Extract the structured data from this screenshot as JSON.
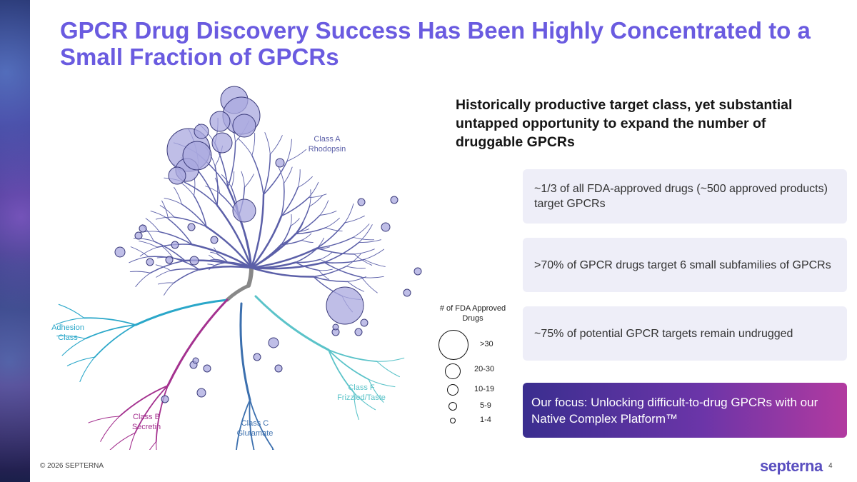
{
  "slide": {
    "title": "GPCR Drug Discovery Success Has Been Highly Concentrated to a Small Fraction of GPCRs",
    "headline": "Historically productive target class, yet substantial untapped opportunity to expand the number of druggable GPCRs",
    "cards": [
      "~1/3 of all FDA-approved drugs (~500 approved products) target GPCRs",
      ">70% of GPCR drugs target 6 small subfamilies of GPCRs",
      "~75% of potential GPCR targets remain undrugged"
    ],
    "focus": "Our focus: Unlocking difficult-to-drug GPCRs with our Native Complex Platform™",
    "footer": {
      "copyright": "© 2026 SEPTERNA",
      "logo": "septerna",
      "page": "4"
    }
  },
  "tree": {
    "classes": {
      "rhodopsin": [
        "Class A",
        "Rhodopsin"
      ],
      "adhesion": [
        "Adhesion",
        "Class"
      ],
      "secretin": [
        "Class B",
        "Secretin"
      ],
      "glutamate": [
        "Class C",
        "Glutamate"
      ],
      "frizzled": [
        "Class F",
        "Frizzled/Taste"
      ]
    },
    "colors": {
      "rhodopsin": "#5b5fa8",
      "adhesion": "#2aa7c9",
      "secretin": "#a4318f",
      "glutamate": "#3b6fae",
      "frizzled": "#5bc3c9",
      "trunk": "#888888",
      "circle_fill": "#a9a8df",
      "circle_stroke": "#3a3a7a"
    },
    "legend": {
      "title": "# of FDA Approved Drugs",
      "items": [
        ">30",
        "20-30",
        "10-19",
        "5-9",
        "1-4"
      ]
    }
  }
}
